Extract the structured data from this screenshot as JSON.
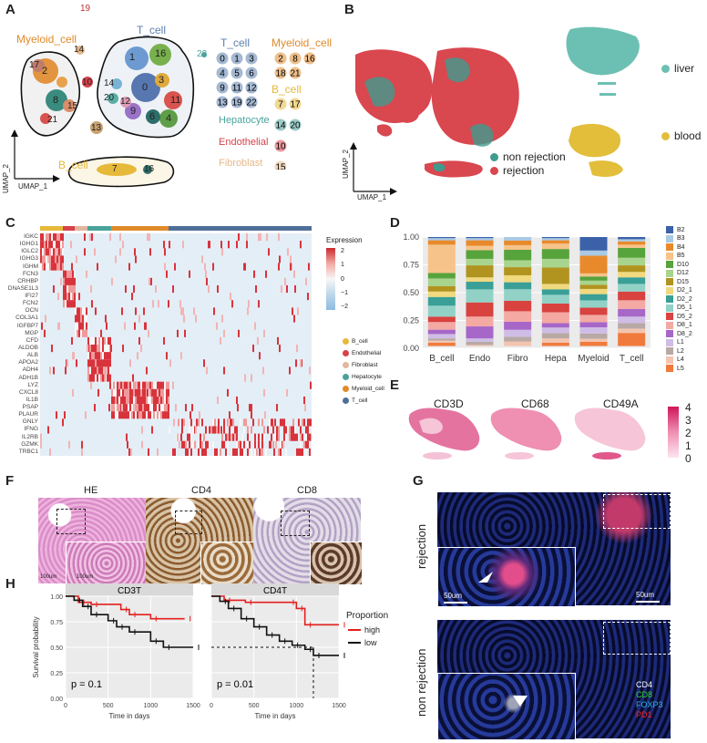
{
  "panels": {
    "A": "A",
    "B": "B",
    "C": "C",
    "D": "D",
    "E": "E",
    "F": "F",
    "G": "G",
    "H": "H"
  },
  "panelA": {
    "cluster_labels": {
      "myeloid": "Myeloid_cell",
      "tcell": "T_cell",
      "bcell": "B_cell"
    },
    "axis_x": "UMAP_1",
    "axis_y": "UMAP_2",
    "top_number": "19",
    "cluster_numbers": [
      "0",
      "1",
      "2",
      "3",
      "4",
      "5",
      "6",
      "7",
      "8",
      "9",
      "10",
      "11",
      "12",
      "13",
      "14",
      "15",
      "16",
      "17",
      "18",
      "20",
      "21",
      "22"
    ],
    "legend": {
      "tcell_title": "T_cell",
      "tcell_ids": [
        "0",
        "1",
        "3",
        "4",
        "5",
        "6",
        "9",
        "11",
        "12",
        "13",
        "19",
        "22"
      ],
      "myeloid_title": "Myeloid_cell",
      "myeloid_ids": [
        "2",
        "8",
        "16",
        "18",
        "21"
      ],
      "bcell_title": "B_cell",
      "bcell_ids": [
        "7",
        "17"
      ],
      "hep_title": "Hepatocyte",
      "hep_ids": [
        "14",
        "20"
      ],
      "endo_title": "Endothelial",
      "endo_ids": [
        "10"
      ],
      "fib_title": "Fibroblast",
      "fib_ids": [
        "15"
      ]
    },
    "colors": {
      "myeloid": "#e08a2a",
      "tcell": "#5b7fae",
      "bcell": "#e6b93a",
      "hep": "#4aa39b",
      "endo": "#d9414b",
      "fib": "#e6b889"
    }
  },
  "panelB": {
    "axis_x": "UMAP_1",
    "axis_y": "UMAP_2",
    "legend_left": [
      {
        "label": "non rejection",
        "color": "#3f9b8e"
      },
      {
        "label": "rejection",
        "color": "#d9474f"
      }
    ],
    "legend_right": [
      {
        "label": "liver",
        "color": "#6cc0b3"
      },
      {
        "label": "blood",
        "color": "#e2be3b"
      }
    ]
  },
  "panelC": {
    "genes": [
      "IGKC",
      "IGHG1",
      "IGLC2",
      "IGHG3",
      "IGHM",
      "FCN3",
      "CRHBP",
      "DNASE1L3",
      "IFI27",
      "FCN2",
      "OCN",
      "COL3A1",
      "IGFBP7",
      "MGP",
      "CFD",
      "ALDOB",
      "ALB",
      "APOA2",
      "ADH4",
      "ADH1B",
      "LYZ",
      "CXCL8",
      "IL1B",
      "PSAP",
      "PLAUR",
      "GNLY",
      "IFNG",
      "IL2RB",
      "GZMK",
      "TRBC1"
    ],
    "expr_title": "Expression",
    "scale_ticks": [
      "2",
      "1",
      "0",
      "−1",
      "−2"
    ],
    "legend": [
      {
        "label": "B_cell",
        "color": "#e6b93a"
      },
      {
        "label": "Endothelial",
        "color": "#d9414b"
      },
      {
        "label": "Fibroblast",
        "color": "#e2b79c"
      },
      {
        "label": "Hepatocyte",
        "color": "#4aa39b"
      },
      {
        "label": "Myeloid_cell",
        "color": "#e08a2a"
      },
      {
        "label": "T_cell",
        "color": "#4f6f98"
      }
    ]
  },
  "chart_data": [
    {
      "type": "bar",
      "stacked": true,
      "categories": [
        "B_cell",
        "Endo",
        "Fibro",
        "Hepa",
        "Myeloid",
        "T_cell"
      ],
      "ylim": [
        0,
        1
      ],
      "yticks": [
        "0.00",
        "0.25",
        "0.50",
        "0.75",
        "1.00"
      ],
      "series": [
        {
          "name": "B2",
          "color": "#3b62a8",
          "values": [
            0.01,
            0.01,
            0.0,
            0.01,
            0.13,
            0.02
          ]
        },
        {
          "name": "B3",
          "color": "#a9c9e6",
          "values": [
            0.02,
            0.02,
            0.03,
            0.02,
            0.05,
            0.02
          ]
        },
        {
          "name": "B4",
          "color": "#e88a2b",
          "values": [
            0.04,
            0.05,
            0.04,
            0.03,
            0.17,
            0.03
          ]
        },
        {
          "name": "B5",
          "color": "#f6c38a",
          "values": [
            0.26,
            0.04,
            0.04,
            0.05,
            0.03,
            0.03
          ]
        },
        {
          "name": "D10",
          "color": "#57a33c",
          "values": [
            0.05,
            0.08,
            0.09,
            0.09,
            0.04,
            0.09
          ]
        },
        {
          "name": "D12",
          "color": "#a8d48d",
          "values": [
            0.07,
            0.06,
            0.06,
            0.08,
            0.04,
            0.07
          ]
        },
        {
          "name": "D15",
          "color": "#b1941f",
          "values": [
            0.05,
            0.11,
            0.07,
            0.15,
            0.04,
            0.06
          ]
        },
        {
          "name": "D2_1",
          "color": "#f0d97f",
          "values": [
            0.05,
            0.04,
            0.06,
            0.05,
            0.05,
            0.05
          ]
        },
        {
          "name": "D2_2",
          "color": "#399f97",
          "values": [
            0.08,
            0.07,
            0.06,
            0.05,
            0.06,
            0.06
          ]
        },
        {
          "name": "D5_1",
          "color": "#92d1c6",
          "values": [
            0.1,
            0.12,
            0.1,
            0.08,
            0.07,
            0.07
          ]
        },
        {
          "name": "D5_2",
          "color": "#d8423f",
          "values": [
            0.05,
            0.13,
            0.09,
            0.08,
            0.07,
            0.08
          ]
        },
        {
          "name": "D8_1",
          "color": "#f4a9a3",
          "values": [
            0.07,
            0.09,
            0.09,
            0.1,
            0.07,
            0.08
          ]
        },
        {
          "name": "D8_2",
          "color": "#a767c8",
          "values": [
            0.04,
            0.11,
            0.07,
            0.04,
            0.05,
            0.07
          ]
        },
        {
          "name": "L1",
          "color": "#cfbde6",
          "values": [
            0.04,
            0.03,
            0.06,
            0.05,
            0.06,
            0.06
          ]
        },
        {
          "name": "L2",
          "color": "#b8a9a5",
          "values": [
            0.02,
            0.03,
            0.04,
            0.05,
            0.05,
            0.05
          ]
        },
        {
          "name": "L4",
          "color": "#f2c5b0",
          "values": [
            0.02,
            0.01,
            0.04,
            0.04,
            0.03,
            0.04
          ]
        },
        {
          "name": "L5",
          "color": "#f07a3d",
          "values": [
            0.03,
            0.0,
            0.0,
            0.03,
            0.04,
            0.12
          ]
        }
      ]
    },
    {
      "type": "line",
      "title": "CD3T",
      "xlabel": "Time in days",
      "ylabel": "Survival probability",
      "xlim": [
        0,
        1500
      ],
      "ylim": [
        0,
        1
      ],
      "xticks": [
        "0",
        "500",
        "1000",
        "1500"
      ],
      "yticks": [
        "0.00",
        "0.25",
        "0.50",
        "0.75",
        "1.00"
      ],
      "annotation": "p = 0.1",
      "series": [
        {
          "name": "high",
          "color": "#e3201f",
          "x": [
            0,
            150,
            300,
            650,
            750,
            1000,
            1400
          ],
          "y": [
            1,
            0.94,
            0.92,
            0.87,
            0.82,
            0.78,
            0.78
          ]
        },
        {
          "name": "low",
          "color": "#111111",
          "x": [
            0,
            100,
            200,
            300,
            500,
            600,
            750,
            1000,
            1150,
            1500
          ],
          "y": [
            1,
            0.96,
            0.9,
            0.82,
            0.76,
            0.7,
            0.65,
            0.56,
            0.5,
            0.5
          ]
        }
      ]
    },
    {
      "type": "line",
      "title": "CD4T",
      "xlabel": "Time in days",
      "ylabel": "",
      "xlim": [
        0,
        1500
      ],
      "ylim": [
        0,
        1
      ],
      "xticks": [
        "0",
        "500",
        "1000",
        "1500"
      ],
      "yticks": [],
      "annotation": "p = 0.01",
      "series": [
        {
          "name": "high",
          "color": "#e3201f",
          "x": [
            0,
            150,
            400,
            900,
            1000,
            1100,
            1500
          ],
          "y": [
            1,
            0.96,
            0.94,
            0.94,
            0.88,
            0.72,
            0.72
          ]
        },
        {
          "name": "low",
          "color": "#111111",
          "x": [
            0,
            100,
            200,
            350,
            500,
            650,
            800,
            950,
            1100,
            1200,
            1500
          ],
          "y": [
            1,
            0.95,
            0.88,
            0.78,
            0.7,
            0.62,
            0.56,
            0.52,
            0.48,
            0.42,
            0.42
          ]
        }
      ]
    }
  ],
  "panelD": {
    "legend_keys": [
      "B2",
      "B3",
      "B4",
      "B5",
      "D10",
      "D12",
      "D15",
      "D2_1",
      "D2_2",
      "D5_1",
      "D5_2",
      "D8_1",
      "D8_2",
      "L1",
      "L2",
      "L4",
      "L5"
    ]
  },
  "panelE": {
    "markers": [
      "CD3D",
      "CD68",
      "CD49A"
    ],
    "scale_ticks": [
      "4",
      "3",
      "2",
      "1",
      "0"
    ]
  },
  "panelF": {
    "titles": [
      "HE",
      "CD4",
      "CD8"
    ],
    "scalebar1": "100um",
    "scalebar2": "100um"
  },
  "panelG": {
    "row1": "rejection",
    "row2": "non rejection",
    "scale_inset": "50um",
    "scale_main": "50um",
    "markers": [
      {
        "label": "CD4",
        "color": "#ffffff"
      },
      {
        "label": "CD8",
        "color": "#34d23a"
      },
      {
        "label": "FOXP3",
        "color": "#27b7e0"
      },
      {
        "label": "PD1",
        "color": "#ff2020"
      }
    ]
  },
  "panelH": {
    "legend_title": "Proportion",
    "legend_high": "high",
    "legend_low": "low",
    "high_color": "#e3201f",
    "low_color": "#111111"
  }
}
